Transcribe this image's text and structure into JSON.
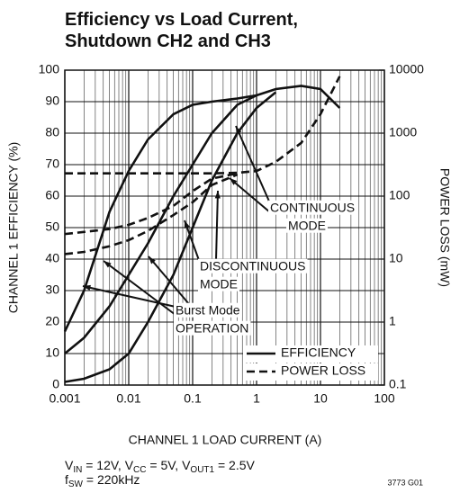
{
  "chart_data": {
    "type": "line",
    "title": [
      "Efficiency vs Load Current,",
      "Shutdown CH2 and CH3"
    ],
    "x_label": "CHANNEL 1 LOAD CURRENT (A)",
    "y_label": "CHANNEL 1 EFFICIENCY (%)",
    "y2_label": "POWER LOSS (mW)",
    "x_log": true,
    "y2_log": true,
    "grid": true,
    "minor_grid": true,
    "xlim": [
      0.001,
      100
    ],
    "xticks": [
      0.001,
      0.01,
      0.1,
      1,
      10,
      100
    ],
    "ylim": [
      0,
      100
    ],
    "yticks": [
      0,
      10,
      20,
      30,
      40,
      50,
      60,
      70,
      80,
      90,
      100
    ],
    "y2lim": [
      0.1,
      10000
    ],
    "y2ticks": [
      0.1,
      1,
      10,
      100,
      1000,
      10000
    ],
    "x": [
      0.001,
      0.002,
      0.005,
      0.01,
      0.02,
      0.05,
      0.1,
      0.2,
      0.5,
      1,
      2,
      5,
      10,
      20
    ],
    "series": [
      {
        "color": "#111",
        "style": "solid",
        "values": [
          17,
          30,
          55,
          68,
          78,
          86,
          89,
          90,
          91,
          92,
          94,
          95,
          94,
          88
        ]
      },
      {
        "color": "#111",
        "style": "solid",
        "values": [
          10,
          15,
          25,
          35,
          45,
          60,
          70,
          80,
          89,
          92,
          null,
          null,
          null,
          null
        ]
      },
      {
        "color": "#111",
        "style": "solid",
        "values": [
          1,
          2,
          5,
          10,
          20,
          35,
          50,
          65,
          80,
          88,
          93,
          null,
          null,
          null
        ]
      },
      {
        "color": "#111",
        "style": "dashed",
        "axis": "y2",
        "values": [
          230,
          230,
          230,
          230,
          230,
          230,
          230,
          230,
          235,
          250,
          350,
          700,
          2000,
          8000
        ]
      },
      {
        "color": "#111",
        "style": "dashed",
        "axis": "y2",
        "values": [
          25,
          27,
          30,
          35,
          45,
          70,
          120,
          190,
          230,
          null,
          null,
          null,
          null,
          null
        ]
      },
      {
        "color": "#111",
        "style": "dashed",
        "axis": "y2",
        "values": [
          12,
          13,
          16,
          20,
          28,
          50,
          80,
          150,
          220,
          null,
          null,
          null,
          null,
          null
        ]
      }
    ],
    "legend": [
      {
        "label": "EFFICIENCY",
        "style": "solid"
      },
      {
        "label": "POWER LOSS",
        "style": "dashed"
      }
    ],
    "annotations": [
      [
        "CONTINUOUS",
        "MODE"
      ],
      [
        "DISCONTINUOUS",
        "MODE"
      ],
      [
        "Burst Mode",
        "OPERATION"
      ]
    ],
    "conditions": [
      [
        "V",
        "IN",
        " = 12V, V",
        "CC",
        " = 5V, V",
        "OUT1",
        " = 2.5V"
      ],
      [
        "f",
        "SW",
        " = 220kHz"
      ]
    ],
    "figure_code": "3773 G01"
  }
}
